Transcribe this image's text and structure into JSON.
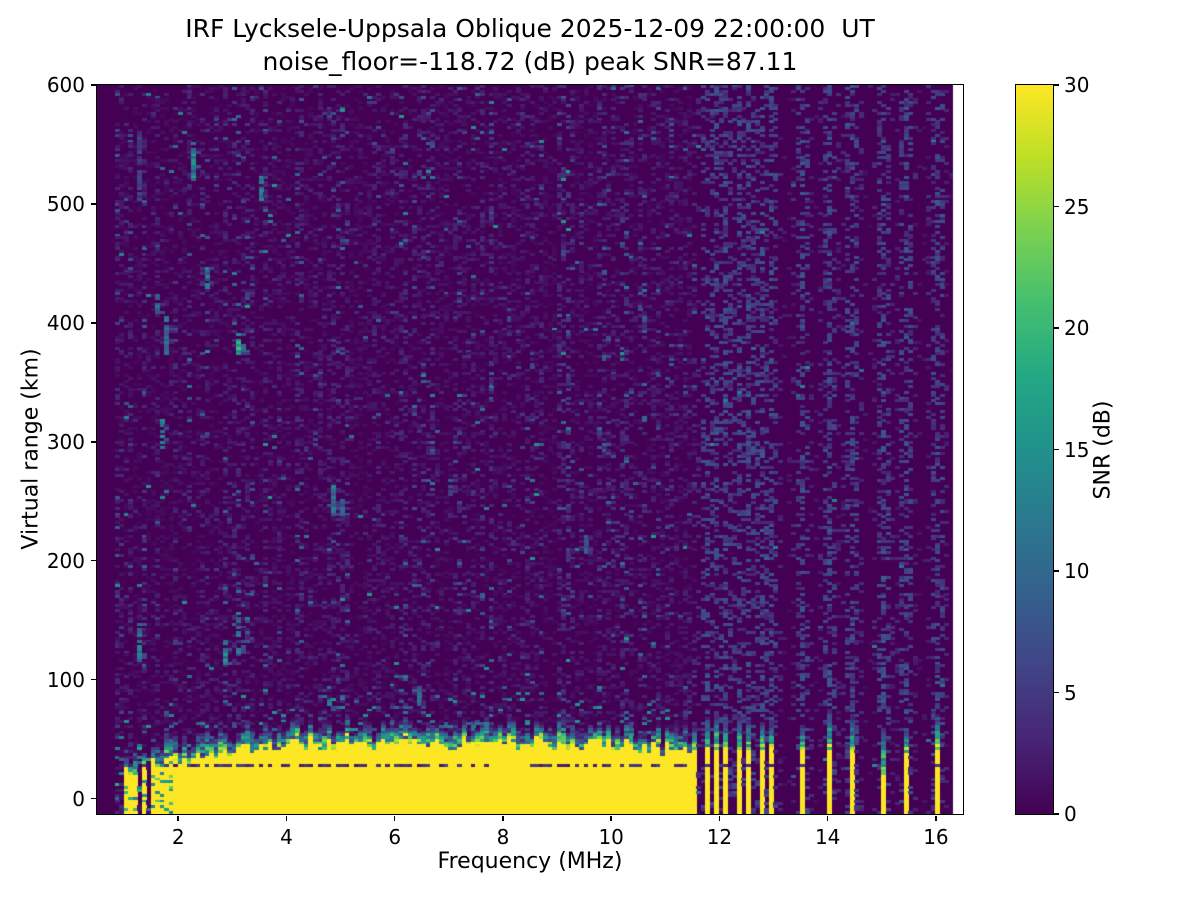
{
  "title": {
    "line1": "IRF Lycksele-Uppsala Oblique 2025-12-09 22:00:00  UT",
    "line2": "noise_floor=-118.72 (dB) peak SNR=87.11"
  },
  "axes": {
    "xlabel": "Frequency (MHz)",
    "ylabel": "Virtual range (km)",
    "x_ticks": [
      2,
      4,
      6,
      8,
      10,
      12,
      14,
      16
    ],
    "y_ticks": [
      0,
      100,
      200,
      300,
      400,
      500,
      600
    ],
    "x_range_mhz": [
      0.5,
      16.5
    ],
    "y_range_km": [
      -13,
      600
    ]
  },
  "colorbar": {
    "label": "SNR (dB)",
    "ticks": [
      0,
      5,
      10,
      15,
      20,
      25,
      30
    ],
    "min": 0,
    "max": 30
  },
  "colors": {
    "viridis_stops": [
      "#440154",
      "#482475",
      "#414487",
      "#355f8d",
      "#2a788e",
      "#21918c",
      "#22a884",
      "#44bf70",
      "#7ad151",
      "#bddf26",
      "#fde725"
    ],
    "figure_background": "#ffffff",
    "spine": "#000000"
  },
  "chart_data": {
    "type": "heatmap",
    "title": "IRF Lycksele-Uppsala Oblique 2025-12-09 22:00:00  UT",
    "subtitle": "noise_floor=-118.72 (dB) peak SNR=87.11",
    "xlabel": "Frequency (MHz)",
    "ylabel": "Virtual range (km)",
    "colormap": "viridis",
    "value_label": "SNR (dB)",
    "value_range_db": [
      0,
      30
    ],
    "noise_floor_db": -118.72,
    "peak_snr_db": 87.11,
    "x_range_mhz": [
      0.5,
      16.5
    ],
    "y_range_km": [
      -13,
      600
    ],
    "signal_start_mhz": 0.85,
    "data_end_mhz": 16.35,
    "grid": {
      "ncols": 192,
      "nrows": 264
    },
    "seed": 42,
    "band": {
      "f_start_mhz": 1.0,
      "f_solid_mhz": 1.9,
      "f_end_mhz": 11.6,
      "top_km_profile": [
        [
          1.0,
          20
        ],
        [
          2.0,
          33
        ],
        [
          3.0,
          39
        ],
        [
          4.0,
          45
        ],
        [
          6.0,
          46
        ],
        [
          8.0,
          46
        ],
        [
          10.0,
          44
        ],
        [
          11.6,
          40
        ]
      ],
      "transition_thickness_km": [
        8,
        24
      ],
      "dark_line_km": 27,
      "saturated_snr_db": 30
    },
    "stripes": [
      {
        "f": 11.75,
        "yellow_top_km": 40,
        "tip_top_km": 68
      },
      {
        "f": 11.95,
        "yellow_top_km": 41,
        "tip_top_km": 72
      },
      {
        "f": 12.15,
        "yellow_top_km": 40,
        "tip_top_km": 65
      },
      {
        "f": 12.35,
        "yellow_top_km": 40,
        "tip_top_km": 70
      },
      {
        "f": 12.55,
        "yellow_top_km": 39,
        "tip_top_km": 66
      },
      {
        "f": 12.75,
        "yellow_top_km": 40,
        "tip_top_km": 64
      },
      {
        "f": 12.95,
        "yellow_top_km": 40,
        "tip_top_km": 62
      },
      {
        "f": 13.5,
        "yellow_top_km": 38,
        "tip_top_km": 62
      },
      {
        "f": 14.0,
        "yellow_top_km": 40,
        "tip_top_km": 75
      },
      {
        "f": 14.47,
        "yellow_top_km": 40,
        "tip_top_km": 68
      },
      {
        "f": 15.02,
        "yellow_top_km": 20,
        "tip_top_km": 60
      },
      {
        "f": 15.47,
        "yellow_top_km": 38,
        "tip_top_km": 58
      },
      {
        "f": 16.04,
        "yellow_top_km": 40,
        "tip_top_km": 70
      }
    ],
    "features": [
      {
        "f": 1.26,
        "km": 133,
        "extent_km": 26,
        "snr": 13
      },
      {
        "f": 1.28,
        "km": 530,
        "extent_km": 55,
        "snr": 6
      },
      {
        "f": 1.65,
        "km": 415,
        "extent_km": 14,
        "snr": 12
      },
      {
        "f": 1.67,
        "km": 308,
        "extent_km": 20,
        "snr": 13
      },
      {
        "f": 1.76,
        "km": 390,
        "extent_km": 28,
        "snr": 11
      },
      {
        "f": 2.3,
        "km": 534,
        "extent_km": 22,
        "snr": 15
      },
      {
        "f": 2.5,
        "km": 438,
        "extent_km": 15,
        "snr": 12
      },
      {
        "f": 2.87,
        "km": 124,
        "extent_km": 16,
        "snr": 14
      },
      {
        "f": 3.1,
        "km": 383,
        "extent_km": 15,
        "snr": 21
      },
      {
        "f": 3.1,
        "km": 140,
        "extent_km": 30,
        "snr": 12
      },
      {
        "f": 3.52,
        "km": 514,
        "extent_km": 16,
        "snr": 13
      },
      {
        "f": 4.9,
        "km": 252,
        "extent_km": 20,
        "snr": 13
      },
      {
        "f": 5.0,
        "km": 248,
        "extent_km": 12,
        "snr": 10
      },
      {
        "f": 6.48,
        "km": 86,
        "extent_km": 12,
        "snr": 12
      },
      {
        "f": 7.0,
        "km": 262,
        "extent_km": 10,
        "snr": 9
      },
      {
        "f": 9.55,
        "km": 215,
        "extent_km": 12,
        "snr": 9
      }
    ]
  }
}
